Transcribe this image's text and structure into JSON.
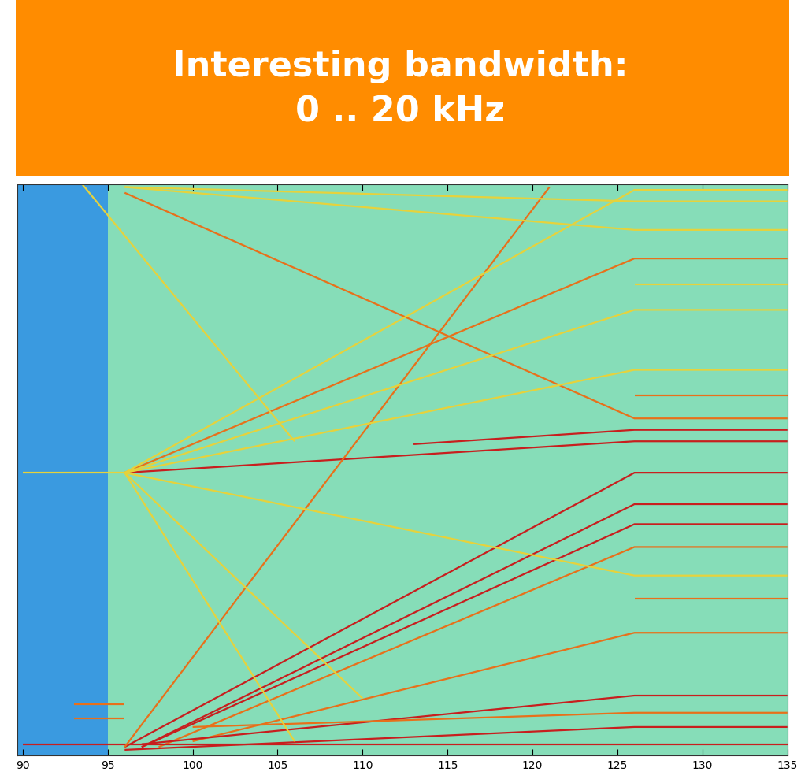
{
  "chart_data": {
    "type": "line",
    "title": "Interesting bandwidth:\n0 .. 20 kHz",
    "xlim": [
      89.7,
      135
    ],
    "xticks": [
      90,
      95,
      100,
      105,
      110,
      115,
      120,
      125,
      130,
      135
    ],
    "ylim": [
      0,
      20
    ],
    "yticks": [],
    "tick_labels": "x",
    "grid": false,
    "background": [
      {
        "x": [
          89.7,
          95
        ],
        "color": "#3a9ae0"
      },
      {
        "x": [
          95,
          135
        ],
        "color": "#86ddb8"
      }
    ],
    "series": [
      {
        "color": "#c81e1e",
        "x": [
          96,
          126,
          135
        ],
        "values": [
          0.3,
          9.9,
          9.9
        ]
      },
      {
        "color": "#c81e1e",
        "x": [
          97,
          126,
          135
        ],
        "values": [
          0.3,
          8.8,
          8.8
        ]
      },
      {
        "color": "#c81e1e",
        "x": [
          97,
          126,
          135
        ],
        "values": [
          0.3,
          8.1,
          8.1
        ]
      },
      {
        "color": "#e8701a",
        "x": [
          98,
          126,
          135
        ],
        "values": [
          0.3,
          7.3,
          7.3
        ]
      },
      {
        "color": "#e8701a",
        "x": [
          100,
          126,
          135
        ],
        "values": [
          0.5,
          4.3,
          4.3
        ]
      },
      {
        "color": "#c81e1e",
        "x": [
          97,
          126,
          135
        ],
        "values": [
          0.4,
          2.1,
          2.1
        ]
      },
      {
        "color": "#e8701a",
        "x": [
          100,
          126,
          135
        ],
        "values": [
          1.0,
          1.5,
          1.5
        ]
      },
      {
        "color": "#c81e1e",
        "x": [
          96,
          126,
          135
        ],
        "values": [
          0.2,
          1.0,
          1.0
        ]
      },
      {
        "color": "#c81e1e",
        "x": [
          90,
          135
        ],
        "values": [
          0.4,
          0.4
        ]
      },
      {
        "color": "#c81e1e",
        "x": [
          96,
          126,
          135
        ],
        "values": [
          9.9,
          11.0,
          11.0
        ]
      },
      {
        "color": "#c81e1e",
        "x": [
          113,
          126,
          135
        ],
        "values": [
          10.9,
          11.4,
          11.4
        ]
      },
      {
        "color": "#e8701a",
        "x": [
          96,
          126,
          135
        ],
        "values": [
          9.9,
          17.4,
          17.4
        ]
      },
      {
        "color": "#e8701a",
        "x": [
          96,
          121
        ],
        "values": [
          0.3,
          19.9
        ]
      },
      {
        "color": "#e8701a",
        "x": [
          96,
          126,
          135
        ],
        "values": [
          19.7,
          11.8,
          11.8
        ]
      },
      {
        "color": "#e6d23c",
        "x": [
          93.5,
          106
        ],
        "values": [
          20,
          11
        ]
      },
      {
        "color": "#e6d23c",
        "x": [
          96,
          126,
          135
        ],
        "values": [
          19.9,
          19.4,
          19.4
        ]
      },
      {
        "color": "#e6d23c",
        "x": [
          96,
          126,
          135
        ],
        "values": [
          19.9,
          18.4,
          18.4
        ]
      },
      {
        "color": "#e6d23c",
        "x": [
          96,
          126,
          135
        ],
        "values": [
          9.9,
          19.8,
          19.8
        ]
      },
      {
        "color": "#e6d23c",
        "x": [
          96,
          126,
          135
        ],
        "values": [
          9.9,
          15.6,
          15.6
        ]
      },
      {
        "color": "#e6d23c",
        "x": [
          96,
          126,
          135
        ],
        "values": [
          9.9,
          13.5,
          13.5
        ]
      },
      {
        "color": "#e6d23c",
        "x": [
          96,
          126,
          135
        ],
        "values": [
          9.9,
          6.3,
          6.3
        ]
      },
      {
        "color": "#e6d23c",
        "x": [
          96,
          110
        ],
        "values": [
          9.9,
          2.0
        ]
      },
      {
        "color": "#e6d23c",
        "x": [
          96,
          106
        ],
        "values": [
          9.9,
          0.5
        ]
      },
      {
        "color": "#e6d23c",
        "x": [
          90,
          96
        ],
        "values": [
          9.9,
          9.9
        ]
      },
      {
        "color": "#e6d23c",
        "x": [
          126,
          135
        ],
        "values": [
          16.5,
          16.5
        ]
      },
      {
        "color": "#e8701a",
        "x": [
          126,
          135
        ],
        "values": [
          12.6,
          12.6
        ]
      },
      {
        "color": "#e8701a",
        "x": [
          126,
          135
        ],
        "values": [
          5.5,
          5.5
        ]
      },
      {
        "color": "#e8701a",
        "x": [
          93,
          96
        ],
        "values": [
          1.8,
          1.8
        ]
      },
      {
        "color": "#e8701a",
        "x": [
          93,
          96
        ],
        "values": [
          1.3,
          1.3
        ]
      }
    ]
  }
}
